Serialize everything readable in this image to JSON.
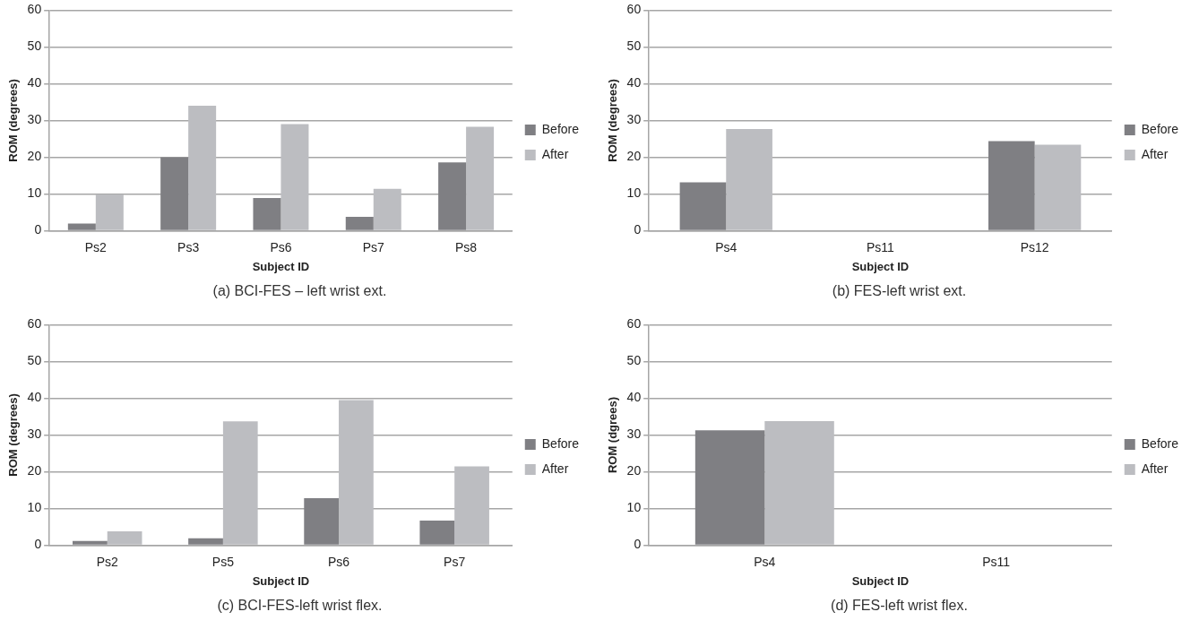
{
  "chart_data": [
    {
      "type": "bar",
      "title": "(a) BCI-FES – left wrist ext.",
      "xlabel": "Subject ID",
      "ylabel": "ROM (degrees)",
      "categories": [
        "Ps2",
        "Ps3",
        "Ps6",
        "Ps7",
        "Ps8"
      ],
      "series": [
        {
          "name": "Before",
          "color": "#7f7f83",
          "values": [
            2.0,
            20.0,
            8.9,
            3.8,
            18.6
          ]
        },
        {
          "name": "After",
          "color": "#bcbdc1",
          "values": [
            9.9,
            34.0,
            29.0,
            11.4,
            28.3
          ]
        }
      ],
      "ylim": [
        0,
        60
      ],
      "yticks": [
        0,
        10,
        20,
        30,
        40,
        50,
        60
      ],
      "grid": "y",
      "legend": "right"
    },
    {
      "type": "bar",
      "title": "(b) FES-left wrist ext.",
      "xlabel": "Subject ID",
      "ylabel": "ROM (degrees)",
      "categories": [
        "Ps4",
        "Ps11",
        "Ps12"
      ],
      "series": [
        {
          "name": "Before",
          "color": "#7f7f83",
          "values": [
            13.2,
            null,
            24.4
          ]
        },
        {
          "name": "After",
          "color": "#bcbdc1",
          "values": [
            27.7,
            null,
            23.4
          ]
        }
      ],
      "ylim": [
        0,
        60
      ],
      "yticks": [
        0,
        10,
        20,
        30,
        40,
        50,
        60
      ],
      "grid": "y",
      "legend": "right"
    },
    {
      "type": "bar",
      "title": "(c) BCI-FES-left wrist flex.",
      "xlabel": "Subject ID",
      "ylabel": "ROM (degrees)",
      "categories": [
        "Ps2",
        "Ps5",
        "Ps6",
        "Ps7"
      ],
      "series": [
        {
          "name": "Before",
          "color": "#7f7f83",
          "values": [
            1.2,
            1.9,
            12.8,
            6.7
          ]
        },
        {
          "name": "After",
          "color": "#bcbdc1",
          "values": [
            3.8,
            33.7,
            39.5,
            21.5
          ]
        }
      ],
      "ylim": [
        0,
        60
      ],
      "yticks": [
        0,
        10,
        20,
        30,
        40,
        50,
        60
      ],
      "grid": "y",
      "legend": "right"
    },
    {
      "type": "bar",
      "title": "(d) FES-left wrist flex.",
      "xlabel": "Subject ID",
      "ylabel": "ROM (dgrees)",
      "categories": [
        "Ps4",
        "Ps11"
      ],
      "series": [
        {
          "name": "Before",
          "color": "#7f7f83",
          "values": [
            31.3,
            null
          ]
        },
        {
          "name": "After",
          "color": "#bcbdc1",
          "values": [
            33.8,
            null
          ]
        }
      ],
      "ylim": [
        0,
        60
      ],
      "yticks": [
        0,
        10,
        20,
        30,
        40,
        50,
        60
      ],
      "grid": "y",
      "legend": "right"
    }
  ]
}
